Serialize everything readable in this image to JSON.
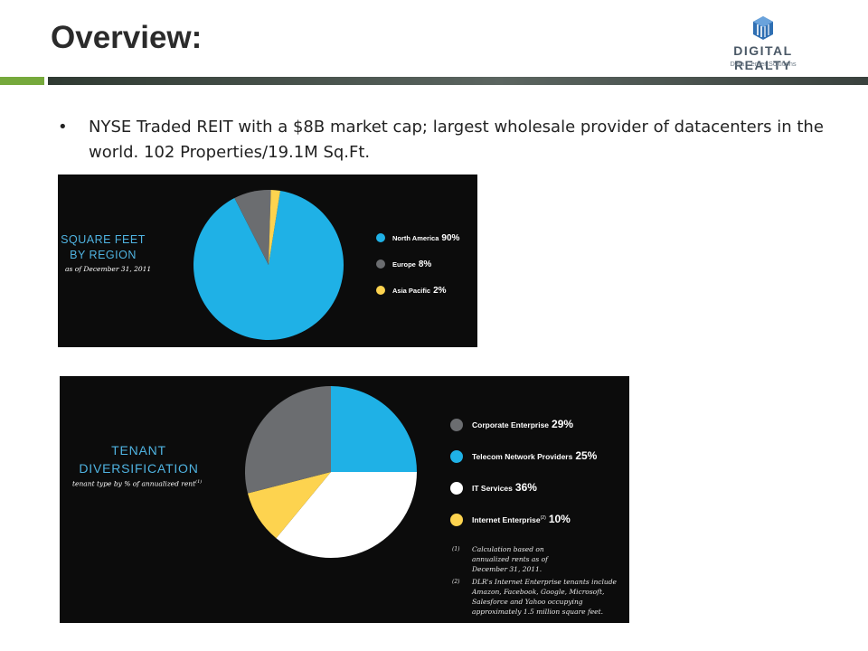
{
  "header": {
    "title": "Overview:",
    "logo": {
      "name": "DIGITAL REALTY",
      "tagline": "Data Center Solutions",
      "mark_color": "#2f6fb3"
    },
    "accent_green": "#76a93c"
  },
  "bullet": {
    "symbol": "•",
    "text": "NYSE Traded REIT with a $8B market cap; largest wholesale provider of datacenters in the world.  102 Properties/19.1M Sq.Ft."
  },
  "chart_data": [
    {
      "type": "pie",
      "title": "SQUARE FEET BY REGION",
      "subtitle": "as of December 31, 2011",
      "legend_position": "right",
      "series": [
        {
          "name": "North America",
          "value": 90,
          "label": "90%",
          "color": "#1fb1e6"
        },
        {
          "name": "Europe",
          "value": 8,
          "label": "8%",
          "color": "#6b6d70"
        },
        {
          "name": "Asia Pacific",
          "value": 2,
          "label": "2%",
          "color": "#fdd34f"
        }
      ]
    },
    {
      "type": "pie",
      "title": "TENANT DIVERSIFICATION",
      "subtitle": "tenant type by % of annualized rent",
      "subtitle_note": "(1)",
      "legend_position": "right",
      "series": [
        {
          "name": "Telecom Network Providers",
          "value": 25,
          "label": "25%",
          "color": "#1fb1e6"
        },
        {
          "name": "IT Services",
          "value": 36,
          "label": "36%",
          "color": "#ffffff"
        },
        {
          "name": "Internet Enterprise",
          "superscript": "(2)",
          "value": 10,
          "label": "10%",
          "color": "#fdd34f"
        },
        {
          "name": "Corporate Enterprise",
          "value": 29,
          "label": "29%",
          "color": "#6b6d70"
        }
      ],
      "legend_order": [
        3,
        0,
        1,
        2
      ],
      "notes": [
        {
          "mark": "(1)",
          "text": "Calculation based on annualized rents as of December 31, 2011."
        },
        {
          "mark": "(2)",
          "text": "DLR's Internet Enterprise tenants include Amazon, Facebook, Google, Microsoft, Salesforce and Yahoo occupying approximately 1.5 million square feet."
        }
      ]
    }
  ]
}
